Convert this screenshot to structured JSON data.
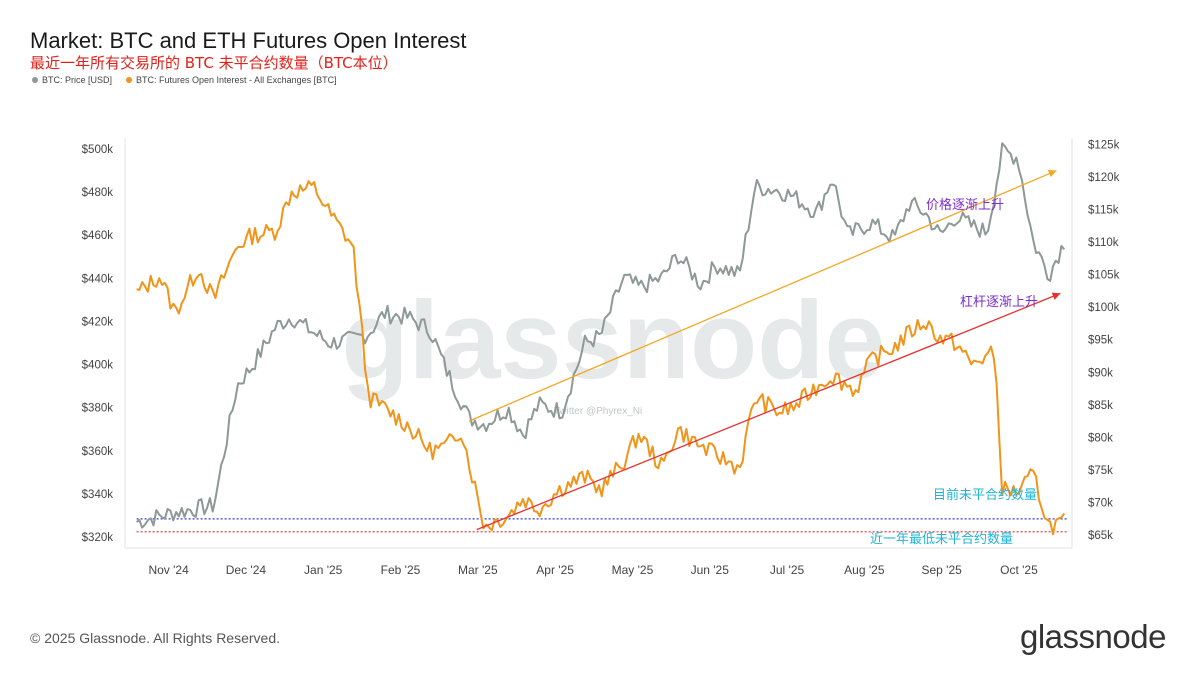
{
  "header": {
    "title": "Market: BTC and ETH Futures Open Interest",
    "subtitle": "最近一年所有交易所的 BTC 未平合约数量（BTC本位）"
  },
  "legend": {
    "price_label": "BTC: Price [USD]",
    "oi_label": "BTC: Futures Open Interest - All Exchanges [BTC]"
  },
  "footer": {
    "copyright": "© 2025 Glassnode. All Rights Reserved.",
    "brand": "glassnode"
  },
  "colors": {
    "price": "#8c9996",
    "oi": "#f0941a",
    "trend_price": "#f5a623",
    "trend_oi": "#e53030",
    "current_line": "#3a3ad8",
    "low_line": "#e53030",
    "ann_purple": "#7b2fd0",
    "ann_cyan": "#1fb5d6"
  },
  "chart_data": {
    "type": "line",
    "title": "Market: BTC and ETH Futures Open Interest",
    "x_tick_labels": [
      "Nov '24",
      "Dec '24",
      "Jan '25",
      "Feb '25",
      "Mar '25",
      "Apr '25",
      "May '25",
      "Jun '25",
      "Jul '25",
      "Aug '25",
      "Sep '25",
      "Oct '25"
    ],
    "left_axis": {
      "label": "BTC: Futures Open Interest - All Exchanges [BTC]",
      "ylim": [
        315000,
        505000
      ],
      "ticks": [
        320000,
        340000,
        360000,
        380000,
        400000,
        420000,
        440000,
        460000,
        480000,
        500000
      ],
      "tick_labels": [
        "$320k",
        "$340k",
        "$360k",
        "$380k",
        "$400k",
        "$420k",
        "$440k",
        "$460k",
        "$480k",
        "$500k"
      ]
    },
    "right_axis": {
      "label": "BTC: Price [USD]",
      "ylim": [
        63000,
        126000
      ],
      "ticks": [
        65000,
        70000,
        75000,
        80000,
        85000,
        90000,
        95000,
        100000,
        105000,
        110000,
        115000,
        120000,
        125000
      ],
      "tick_labels": [
        "$65k",
        "$70k",
        "$75k",
        "$80k",
        "$85k",
        "$90k",
        "$95k",
        "$100k",
        "$105k",
        "$110k",
        "$115k",
        "$120k",
        "$125k"
      ]
    },
    "series": [
      {
        "name": "BTC: Price [USD]",
        "axis": "right",
        "x": [
          0,
          0.5,
          1,
          1.3,
          1.5,
          1.8,
          2,
          2.3,
          2.5,
          2.8,
          3,
          3.2,
          3.5,
          3.8,
          4,
          4.3,
          4.5,
          4.8,
          5,
          5.2,
          5.5,
          5.8,
          6,
          6.3,
          6.5,
          6.8,
          7,
          7.3,
          7.5,
          7.8,
          8,
          8.3,
          8.5,
          8.8,
          9,
          9.2,
          9.5,
          9.8,
          10,
          10.2,
          10.4,
          10.6,
          10.8,
          11,
          11.2,
          11.4,
          11.6,
          11.8,
          12
        ],
        "values": [
          67000,
          68500,
          69500,
          88000,
          91000,
          97000,
          98500,
          96000,
          94500,
          95000,
          96000,
          99000,
          98500,
          96500,
          90500,
          83000,
          82000,
          84500,
          80500,
          85000,
          84000,
          94500,
          95500,
          104500,
          103000,
          104500,
          108000,
          103500,
          106500,
          105000,
          118500,
          118000,
          117000,
          114500,
          120000,
          111000,
          113000,
          110500,
          116000,
          114500,
          111000,
          114000,
          112500,
          111500,
          124000,
          123000,
          110000,
          105000,
          110000
        ]
      },
      {
        "name": "BTC: Futures Open Interest - All Exchanges [BTC]",
        "axis": "left",
        "x": [
          0,
          0.3,
          0.5,
          0.8,
          1,
          1.3,
          1.5,
          1.8,
          2,
          2.3,
          2.5,
          2.8,
          3,
          3.2,
          3.5,
          3.8,
          4,
          4.2,
          4.5,
          4.8,
          5,
          5.2,
          5.5,
          5.8,
          6,
          6.3,
          6.5,
          6.8,
          7,
          7.3,
          7.5,
          7.8,
          8,
          8.3,
          8.5,
          8.8,
          9,
          9.3,
          9.5,
          9.8,
          10,
          10.2,
          10.4,
          10.6,
          10.8,
          11,
          11.1,
          11.2,
          11.4,
          11.6,
          11.8,
          12
        ],
        "values": [
          433000,
          441000,
          424000,
          445000,
          430000,
          455000,
          460000,
          462000,
          480000,
          482000,
          470000,
          455000,
          385000,
          380000,
          372000,
          360000,
          362000,
          370000,
          325000,
          330000,
          338000,
          333000,
          343000,
          348000,
          342000,
          355000,
          368000,
          352000,
          370000,
          362000,
          358000,
          352000,
          385000,
          378000,
          380000,
          390000,
          395000,
          388000,
          402000,
          408000,
          415000,
          420000,
          412000,
          410000,
          400000,
          404000,
          405000,
          342000,
          341000,
          349000,
          325000,
          327000
        ]
      }
    ],
    "reference_lines": [
      {
        "name": "current-oi-level",
        "value": 328500,
        "axis": "left",
        "style": "dotted",
        "color": "#3a3ad8"
      },
      {
        "name": "yearly-low-oi",
        "value": 322500,
        "axis": "left",
        "style": "dotted",
        "color": "#e53030"
      }
    ],
    "trend_lines": [
      {
        "name": "price-trend",
        "axis": "right",
        "from": {
          "x": 4.3,
          "y": 82500
        },
        "to": {
          "x": 11.9,
          "y": 121000
        }
      },
      {
        "name": "oi-trend",
        "axis": "left",
        "from": {
          "x": 4.4,
          "y": 323500
        },
        "to": {
          "x": 11.95,
          "y": 433000
        }
      }
    ],
    "annotations": [
      {
        "name": "price-rising",
        "text": "价格逐渐上升",
        "color": "#7b2fd0"
      },
      {
        "name": "leverage-rising",
        "text": "杠杆逐渐上升",
        "color": "#7b2fd0"
      },
      {
        "name": "current-oi",
        "text": "目前未平合约数量",
        "color": "#1fb5d6"
      },
      {
        "name": "yearly-low",
        "text": "近一年最低未平合约数量",
        "color": "#1fb5d6"
      }
    ],
    "watermark": "Twitter @Phyrex_Ni",
    "grid": false
  }
}
